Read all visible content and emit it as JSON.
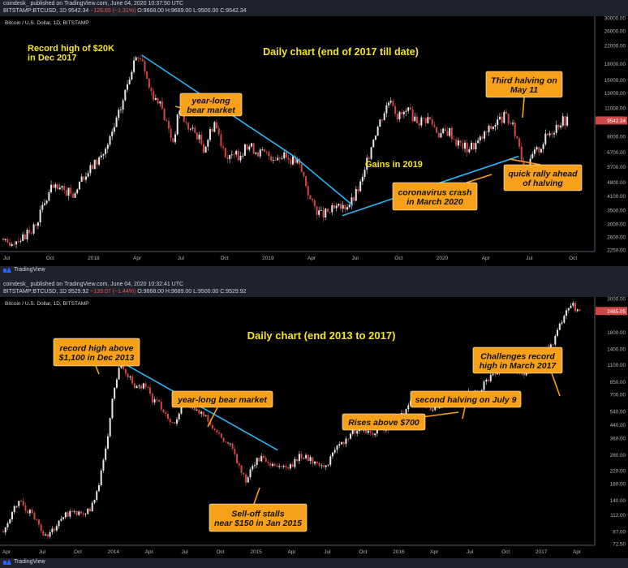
{
  "panels": [
    {
      "header_line1": "coindesk_ published on TradingView.com, June 04, 2020 10:37:50 UTC",
      "header_line2_prefix": "BITSTAMP:BTCUSD, 1D 9542.34",
      "header_line2_change": "−126.65 (−1.31%)",
      "header_line2_ohlc": "O:9668.00 H:9689.00 L:9500.00 C:9542.34",
      "footer_logo": "TradingView"
    },
    {
      "header_line1": "coindesk_ published on TradingView.com, June 04, 2020 10:32:41 UTC",
      "header_line2_prefix": "BITSTAMP:BTCUSD, 1D 9529.92",
      "header_line2_change": "−139.07 (−1.44%)",
      "header_line2_ohlc": "O:9668.00 H:9689.00 L:9500.00 C:9529.92",
      "footer_logo": "TradingView"
    }
  ],
  "chart_data": [
    {
      "type": "candlestick",
      "symbol_label": "Bitcoin / U.S. Dollar, 1D, BITSTAMP",
      "title": "Daily chart (end of 2017 till date)",
      "y_scale": "log",
      "ylim": [
        2250,
        30000
      ],
      "y_ticks": [
        2250,
        2600,
        3000,
        3500,
        4100,
        4800,
        5700,
        6700,
        8000,
        9500,
        11000,
        13000,
        15000,
        18000,
        22000,
        26000,
        30000
      ],
      "y_tick_labels": [
        "2250.00",
        "2600.00",
        "3000.00",
        "3500.00",
        "4100.00",
        "4800.00",
        "5700.00",
        "6700.00",
        "8000.00",
        "9500.00",
        "11000.00",
        "13000.00",
        "15000.00",
        "18000.00",
        "22000.00",
        "26000.00",
        "30000.00"
      ],
      "x_ticks": [
        "Jul",
        "Oct",
        "2018",
        "Apr",
        "Jul",
        "Oct",
        "2019",
        "Apr",
        "Jul",
        "Oct",
        "2020",
        "Apr",
        "Jul",
        "Oct"
      ],
      "last_price": 9542.34,
      "last_price_label": "9542.34",
      "price_path": [
        [
          0,
          2400
        ],
        [
          8,
          2700
        ],
        [
          14,
          4500
        ],
        [
          20,
          4200
        ],
        [
          26,
          5800
        ],
        [
          30,
          7000
        ],
        [
          34,
          11000
        ],
        [
          37,
          17000
        ],
        [
          40,
          19800
        ],
        [
          42,
          14000
        ],
        [
          45,
          11500
        ],
        [
          47,
          9500
        ],
        [
          49,
          7500
        ],
        [
          51,
          11000
        ],
        [
          53,
          9000
        ],
        [
          56,
          8200
        ],
        [
          58,
          7000
        ],
        [
          61,
          9500
        ],
        [
          63,
          7500
        ],
        [
          65,
          6200
        ],
        [
          68,
          6500
        ],
        [
          71,
          7200
        ],
        [
          74,
          6700
        ],
        [
          78,
          6400
        ],
        [
          82,
          6300
        ],
        [
          85,
          6000
        ],
        [
          87,
          5000
        ],
        [
          89,
          3800
        ],
        [
          92,
          3300
        ],
        [
          95,
          3500
        ],
        [
          98,
          3600
        ],
        [
          101,
          3900
        ],
        [
          104,
          5000
        ],
        [
          107,
          8000
        ],
        [
          110,
          10500
        ],
        [
          112,
          12500
        ],
        [
          114,
          10000
        ],
        [
          117,
          10500
        ],
        [
          120,
          9500
        ],
        [
          123,
          9800
        ],
        [
          126,
          8200
        ],
        [
          129,
          8500
        ],
        [
          131,
          7500
        ],
        [
          134,
          7000
        ],
        [
          137,
          7400
        ],
        [
          140,
          8500
        ],
        [
          143,
          9500
        ],
        [
          145,
          10000
        ],
        [
          147,
          9000
        ],
        [
          149,
          7500
        ],
        [
          151,
          5000
        ],
        [
          153,
          6500
        ],
        [
          155,
          7000
        ],
        [
          157,
          8000
        ],
        [
          159,
          8700
        ],
        [
          161,
          9500
        ],
        [
          163,
          9600
        ]
      ],
      "x_span": 170,
      "price_lines": [
        {
          "from": [
            40,
            19800
          ],
          "to": [
            84,
            6400
          ]
        },
        {
          "from": [
            101,
            3700
          ],
          "to": [
            84,
            6400
          ]
        },
        {
          "from": [
            98,
            3300
          ],
          "to": [
            149,
            6400
          ]
        }
      ],
      "annotations": [
        {
          "text": [
            "Record high of $20K",
            "in Dec 2017"
          ],
          "style": "plain"
        },
        {
          "text": [
            "year-long",
            "bear market"
          ],
          "style": "box"
        },
        {
          "text": [
            "Gains in 2019"
          ],
          "style": "plain"
        },
        {
          "text": [
            "coronavirus crash",
            "in March 2020"
          ],
          "style": "box"
        },
        {
          "text": [
            "Third halving on",
            "May 11"
          ],
          "style": "box"
        },
        {
          "text": [
            "quick rally ahead",
            "of halving"
          ],
          "style": "box"
        }
      ]
    },
    {
      "type": "candlestick",
      "symbol_label": "Bitcoin / U.S. Dollar, 1D, BITSTAMP",
      "title": "Daily chart (end 2013 to 2017)",
      "y_scale": "log",
      "ylim": [
        72.5,
        3000
      ],
      "y_ticks": [
        72.5,
        87,
        112,
        140,
        180,
        220,
        280,
        360,
        440,
        540,
        700,
        850,
        1100,
        1400,
        1800,
        2400,
        3000
      ],
      "y_tick_labels": [
        "72.50",
        "87.00",
        "112.00",
        "140.00",
        "180.00",
        "220.00",
        "280.00",
        "360.00",
        "440.00",
        "540.00",
        "700.00",
        "850.00",
        "1100.00",
        "1400.00",
        "1800.00",
        "2400.00",
        "3000.00"
      ],
      "x_ticks": [
        "Apr",
        "Jul",
        "Oct",
        "2014",
        "Apr",
        "Jul",
        "Oct",
        "2015",
        "Apr",
        "Jul",
        "Oct",
        "2016",
        "Apr",
        "Jul",
        "Oct",
        "2017",
        "Apr"
      ],
      "last_price": 2485.05,
      "last_price_label": "2485.05",
      "price_path": [
        [
          0,
          90
        ],
        [
          4,
          140
        ],
        [
          8,
          110
        ],
        [
          11,
          80
        ],
        [
          14,
          100
        ],
        [
          17,
          120
        ],
        [
          20,
          110
        ],
        [
          23,
          130
        ],
        [
          26,
          280
        ],
        [
          28,
          700
        ],
        [
          30,
          1150
        ],
        [
          32,
          900
        ],
        [
          34,
          750
        ],
        [
          36,
          850
        ],
        [
          38,
          650
        ],
        [
          40,
          600
        ],
        [
          42,
          500
        ],
        [
          44,
          450
        ],
        [
          46,
          620
        ],
        [
          48,
          600
        ],
        [
          50,
          550
        ],
        [
          52,
          480
        ],
        [
          54,
          400
        ],
        [
          56,
          350
        ],
        [
          58,
          320
        ],
        [
          60,
          240
        ],
        [
          62,
          180
        ],
        [
          64,
          250
        ],
        [
          66,
          270
        ],
        [
          68,
          230
        ],
        [
          70,
          240
        ],
        [
          73,
          230
        ],
        [
          76,
          280
        ],
        [
          79,
          250
        ],
        [
          82,
          230
        ],
        [
          85,
          300
        ],
        [
          88,
          380
        ],
        [
          91,
          430
        ],
        [
          94,
          400
        ],
        [
          97,
          420
        ],
        [
          100,
          450
        ],
        [
          103,
          560
        ],
        [
          105,
          680
        ],
        [
          107,
          620
        ],
        [
          109,
          580
        ],
        [
          112,
          610
        ],
        [
          115,
          650
        ],
        [
          118,
          700
        ],
        [
          121,
          730
        ],
        [
          124,
          900
        ],
        [
          127,
          1050
        ],
        [
          130,
          1150
        ],
        [
          132,
          950
        ],
        [
          135,
          1100
        ],
        [
          138,
          1300
        ],
        [
          141,
          1700
        ],
        [
          143,
          2300
        ],
        [
          145,
          2700
        ],
        [
          147,
          2480
        ]
      ],
      "x_span": 150,
      "price_lines": [
        {
          "from": [
            30,
            1150
          ],
          "to": [
            70,
            300
          ]
        }
      ],
      "annotations": [
        {
          "text": [
            "record high above",
            "$1,100 in Dec 2013"
          ],
          "style": "box"
        },
        {
          "text": [
            "year-long bear market"
          ],
          "style": "box"
        },
        {
          "text": [
            "Sell-off stalls",
            "near $150 in Jan 2015"
          ],
          "style": "box"
        },
        {
          "text": [
            "Rises above $700"
          ],
          "style": "box"
        },
        {
          "text": [
            "second halving on July 9"
          ],
          "style": "box"
        },
        {
          "text": [
            "Challenges record",
            "high in March 2017"
          ],
          "style": "box"
        }
      ]
    }
  ]
}
